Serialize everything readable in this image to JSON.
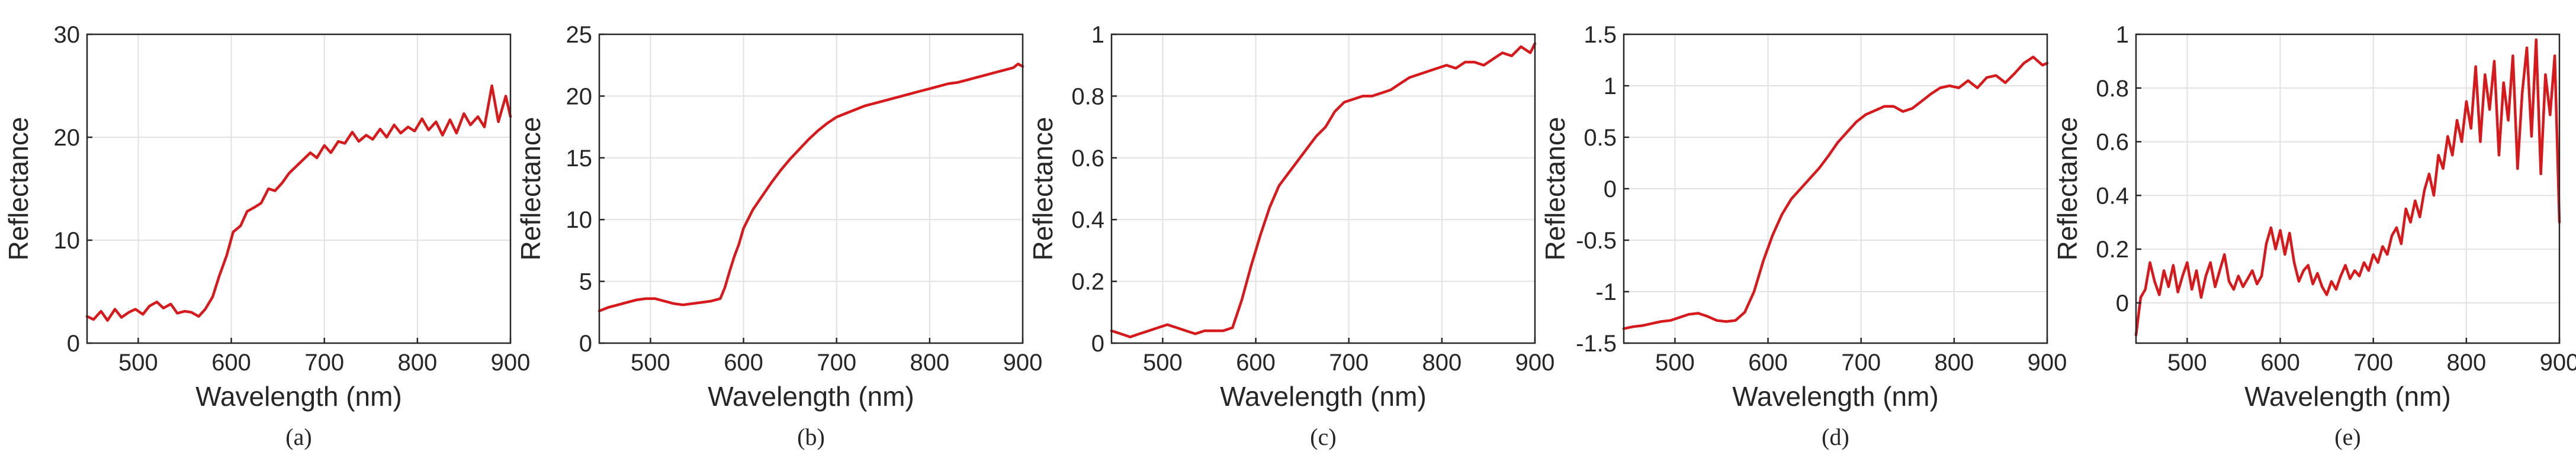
{
  "style": {
    "line_color": "#d7191c",
    "axes_color": "#262626",
    "grid_color": "#e2e2e2"
  },
  "chart_data": [
    {
      "type": "line",
      "panel_label": "(a)",
      "xlabel": "Wavelength (nm)",
      "ylabel": "Reflectance",
      "xlim": [
        445,
        900
      ],
      "ylim": [
        0,
        30
      ],
      "xticks": [
        500,
        600,
        700,
        800,
        900
      ],
      "yticks": [
        0,
        10,
        20,
        30
      ],
      "ytick_labels": [
        "0",
        "10",
        "20",
        "30"
      ],
      "grid": true,
      "series": [
        {
          "x": [
            445,
            452,
            460,
            467,
            475,
            482,
            490,
            497,
            505,
            512,
            520,
            527,
            535,
            542,
            550,
            557,
            565,
            572,
            580,
            587,
            595,
            602,
            610,
            617,
            625,
            632,
            640,
            647,
            655,
            662,
            670,
            677,
            685,
            692,
            700,
            707,
            715,
            722,
            730,
            737,
            745,
            752,
            760,
            767,
            775,
            782,
            790,
            797,
            805,
            812,
            820,
            827,
            835,
            842,
            850,
            857,
            865,
            872,
            880,
            887,
            895,
            900
          ],
          "y": [
            2.6,
            2.3,
            3.1,
            2.2,
            3.3,
            2.5,
            3.0,
            3.3,
            2.8,
            3.6,
            4.0,
            3.4,
            3.8,
            2.9,
            3.1,
            3.0,
            2.6,
            3.3,
            4.5,
            6.5,
            8.5,
            10.8,
            11.4,
            12.8,
            13.2,
            13.6,
            15.0,
            14.8,
            15.6,
            16.5,
            17.2,
            17.8,
            18.5,
            18.0,
            19.2,
            18.5,
            19.6,
            19.4,
            20.5,
            19.6,
            20.2,
            19.8,
            20.8,
            20.0,
            21.2,
            20.4,
            21.0,
            20.6,
            21.8,
            20.7,
            21.5,
            20.2,
            21.7,
            20.4,
            22.3,
            21.2,
            22.0,
            21.0,
            25.0,
            21.5,
            24.0,
            22.0
          ]
        }
      ]
    },
    {
      "type": "line",
      "panel_label": "(b)",
      "xlabel": "Wavelength (nm)",
      "ylabel": "Reflectance",
      "xlim": [
        445,
        900
      ],
      "ylim": [
        0,
        25
      ],
      "xticks": [
        500,
        600,
        700,
        800,
        900
      ],
      "yticks": [
        0,
        5,
        10,
        15,
        20,
        25
      ],
      "ytick_labels": [
        "0",
        "5",
        "10",
        "15",
        "20",
        "25"
      ],
      "grid": true,
      "series": [
        {
          "x": [
            445,
            455,
            465,
            475,
            485,
            495,
            505,
            515,
            525,
            535,
            545,
            555,
            565,
            575,
            580,
            585,
            590,
            595,
            600,
            610,
            620,
            630,
            640,
            650,
            660,
            670,
            680,
            690,
            700,
            710,
            720,
            730,
            740,
            750,
            760,
            770,
            780,
            790,
            800,
            810,
            820,
            830,
            840,
            850,
            860,
            870,
            880,
            890,
            895,
            900
          ],
          "y": [
            2.6,
            2.9,
            3.1,
            3.3,
            3.5,
            3.6,
            3.6,
            3.4,
            3.2,
            3.1,
            3.2,
            3.3,
            3.4,
            3.6,
            4.5,
            5.8,
            7.0,
            8.0,
            9.3,
            10.8,
            11.9,
            13.0,
            14.0,
            14.9,
            15.7,
            16.5,
            17.2,
            17.8,
            18.3,
            18.6,
            18.9,
            19.2,
            19.4,
            19.6,
            19.8,
            20.0,
            20.2,
            20.4,
            20.6,
            20.8,
            21.0,
            21.1,
            21.3,
            21.5,
            21.7,
            21.9,
            22.1,
            22.3,
            22.6,
            22.4
          ]
        }
      ]
    },
    {
      "type": "line",
      "panel_label": "(c)",
      "xlabel": "Wavelength (nm)",
      "ylabel": "Reflectance",
      "xlim": [
        445,
        900
      ],
      "ylim": [
        0,
        1
      ],
      "xticks": [
        500,
        600,
        700,
        800,
        900
      ],
      "yticks": [
        0,
        0.2,
        0.4,
        0.6,
        0.8,
        1
      ],
      "ytick_labels": [
        "0",
        "0.2",
        "0.4",
        "0.6",
        "0.8",
        "1"
      ],
      "grid": true,
      "series": [
        {
          "x": [
            445,
            455,
            465,
            475,
            485,
            495,
            505,
            515,
            525,
            535,
            545,
            555,
            565,
            575,
            585,
            595,
            605,
            615,
            625,
            635,
            645,
            655,
            665,
            675,
            685,
            695,
            705,
            715,
            725,
            735,
            745,
            755,
            765,
            775,
            785,
            795,
            805,
            815,
            825,
            835,
            845,
            855,
            865,
            875,
            885,
            895,
            900
          ],
          "y": [
            0.04,
            0.03,
            0.02,
            0.03,
            0.04,
            0.05,
            0.06,
            0.05,
            0.04,
            0.03,
            0.04,
            0.04,
            0.04,
            0.05,
            0.14,
            0.25,
            0.35,
            0.44,
            0.51,
            0.55,
            0.59,
            0.63,
            0.67,
            0.7,
            0.75,
            0.78,
            0.79,
            0.8,
            0.8,
            0.81,
            0.82,
            0.84,
            0.86,
            0.87,
            0.88,
            0.89,
            0.9,
            0.89,
            0.91,
            0.91,
            0.9,
            0.92,
            0.94,
            0.93,
            0.96,
            0.94,
            0.97
          ]
        }
      ]
    },
    {
      "type": "line",
      "panel_label": "(d)",
      "xlabel": "Wavelength (nm)",
      "ylabel": "Reflectance",
      "xlim": [
        445,
        900
      ],
      "ylim": [
        -1.5,
        1.5
      ],
      "xticks": [
        500,
        600,
        700,
        800,
        900
      ],
      "yticks": [
        -1.5,
        -1,
        -0.5,
        0,
        0.5,
        1,
        1.5
      ],
      "ytick_labels": [
        "-1.5",
        "-1",
        "-0.5",
        "0",
        "0.5",
        "1",
        "1.5"
      ],
      "grid": true,
      "series": [
        {
          "x": [
            445,
            455,
            465,
            475,
            485,
            495,
            505,
            515,
            525,
            535,
            545,
            555,
            565,
            575,
            585,
            595,
            605,
            615,
            625,
            635,
            645,
            655,
            665,
            675,
            685,
            695,
            705,
            715,
            725,
            735,
            745,
            755,
            765,
            775,
            785,
            795,
            805,
            815,
            825,
            835,
            845,
            855,
            865,
            875,
            885,
            895,
            900
          ],
          "y": [
            -1.36,
            -1.34,
            -1.33,
            -1.31,
            -1.29,
            -1.28,
            -1.25,
            -1.22,
            -1.21,
            -1.24,
            -1.28,
            -1.29,
            -1.28,
            -1.2,
            -1.0,
            -0.7,
            -0.45,
            -0.25,
            -0.1,
            0.0,
            0.1,
            0.2,
            0.32,
            0.45,
            0.55,
            0.65,
            0.72,
            0.76,
            0.8,
            0.8,
            0.75,
            0.78,
            0.85,
            0.92,
            0.98,
            1.0,
            0.98,
            1.05,
            0.98,
            1.08,
            1.1,
            1.03,
            1.12,
            1.22,
            1.28,
            1.2,
            1.22
          ]
        }
      ]
    },
    {
      "type": "line",
      "panel_label": "(e)",
      "xlabel": "Wavelength (nm)",
      "ylabel": "Reflectance",
      "xlim": [
        445,
        900
      ],
      "ylim": [
        -0.15,
        1
      ],
      "xticks": [
        500,
        600,
        700,
        800,
        900
      ],
      "yticks": [
        0,
        0.2,
        0.4,
        0.6,
        0.8,
        1
      ],
      "ytick_labels": [
        "0",
        "0.2",
        "0.4",
        "0.6",
        "0.8",
        "1"
      ],
      "grid": true,
      "series": [
        {
          "x": [
            445,
            450,
            455,
            460,
            465,
            470,
            475,
            480,
            485,
            490,
            495,
            500,
            505,
            510,
            515,
            520,
            525,
            530,
            535,
            540,
            545,
            550,
            555,
            560,
            565,
            570,
            575,
            580,
            585,
            590,
            595,
            600,
            605,
            610,
            615,
            620,
            625,
            630,
            635,
            640,
            645,
            650,
            655,
            660,
            665,
            670,
            675,
            680,
            685,
            690,
            695,
            700,
            705,
            710,
            715,
            720,
            725,
            730,
            735,
            740,
            745,
            750,
            755,
            760,
            765,
            770,
            775,
            780,
            785,
            790,
            795,
            800,
            805,
            810,
            815,
            820,
            825,
            830,
            835,
            840,
            845,
            850,
            855,
            860,
            865,
            870,
            875,
            880,
            885,
            890,
            895,
            900
          ],
          "y": [
            -0.12,
            0.02,
            0.05,
            0.15,
            0.08,
            0.03,
            0.12,
            0.06,
            0.14,
            0.04,
            0.1,
            0.15,
            0.05,
            0.12,
            0.02,
            0.1,
            0.15,
            0.06,
            0.12,
            0.18,
            0.08,
            0.05,
            0.1,
            0.06,
            0.09,
            0.12,
            0.07,
            0.1,
            0.22,
            0.28,
            0.2,
            0.27,
            0.18,
            0.26,
            0.15,
            0.08,
            0.12,
            0.14,
            0.07,
            0.11,
            0.06,
            0.03,
            0.08,
            0.05,
            0.1,
            0.14,
            0.09,
            0.12,
            0.1,
            0.15,
            0.12,
            0.18,
            0.15,
            0.21,
            0.18,
            0.25,
            0.28,
            0.22,
            0.35,
            0.3,
            0.38,
            0.32,
            0.42,
            0.48,
            0.4,
            0.55,
            0.5,
            0.62,
            0.55,
            0.68,
            0.6,
            0.75,
            0.65,
            0.88,
            0.6,
            0.85,
            0.72,
            0.9,
            0.55,
            0.82,
            0.68,
            0.92,
            0.5,
            0.78,
            0.95,
            0.62,
            0.98,
            0.48,
            0.85,
            0.7,
            0.92,
            0.3
          ]
        }
      ]
    }
  ]
}
